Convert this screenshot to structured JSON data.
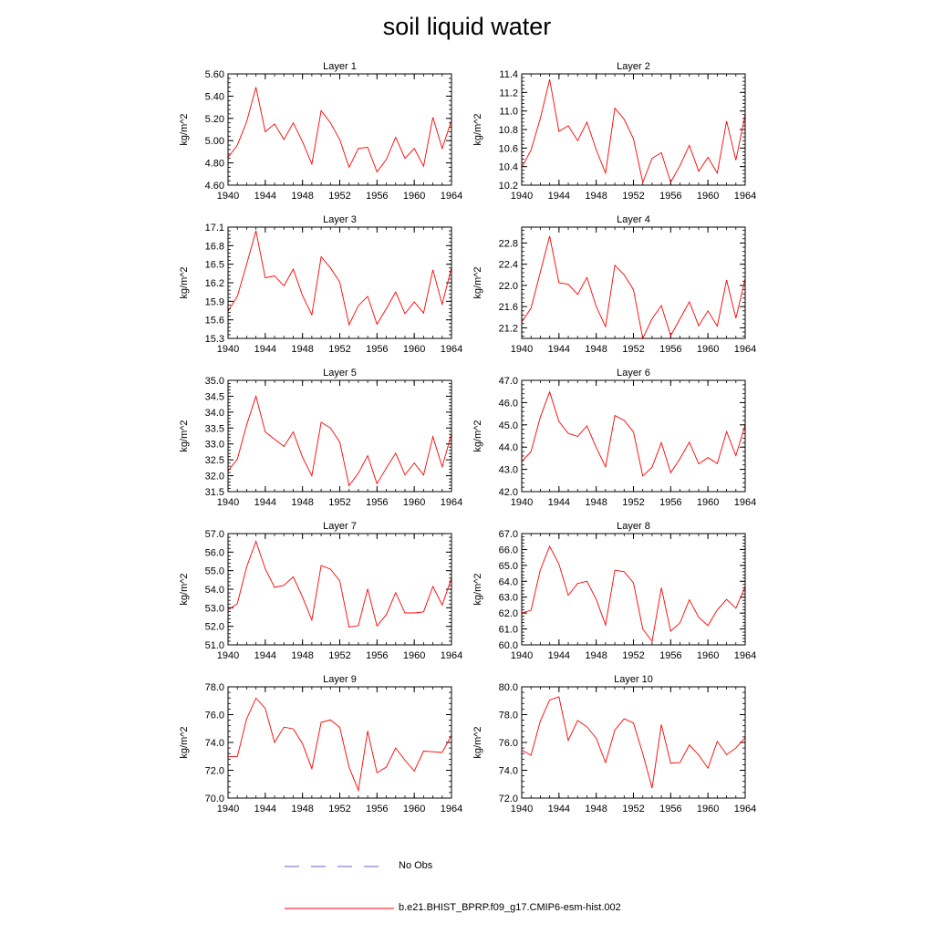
{
  "page_title": "soil liquid water",
  "legend": {
    "obs_label": "No Obs",
    "obs_color": "#6666cc",
    "model_label": "b.e21.BHIST_BPRP.f09_g17.CMIP6-esm-hist.002",
    "model_color": "#ff0000"
  },
  "chart_data": [
    {
      "type": "line",
      "title": "Layer 1",
      "ylabel": "kg/m^2",
      "xlim": [
        1940,
        1964
      ],
      "ylim": [
        4.6,
        5.6
      ],
      "x_ticks": [
        "1940",
        "1944",
        "1948",
        "1952",
        "1956",
        "1960",
        "1964"
      ],
      "y_ticks": [
        "4.60",
        "4.80",
        "5.00",
        "5.20",
        "5.40",
        "5.60"
      ],
      "series": [
        {
          "name": "b.e21.BHIST_BPRP.f09_g17.CMIP6-esm-hist.002",
          "color": "#ff0000",
          "x": [
            1940,
            1941,
            1942,
            1943,
            1944,
            1945,
            1946,
            1947,
            1948,
            1949,
            1950,
            1951,
            1952,
            1953,
            1954,
            1955,
            1956,
            1957,
            1958,
            1959,
            1960,
            1961,
            1962,
            1963,
            1964
          ],
          "y": [
            4.85,
            4.96,
            5.17,
            5.48,
            5.08,
            5.15,
            5.01,
            5.16,
            4.99,
            4.79,
            5.27,
            5.16,
            5.01,
            4.76,
            4.93,
            4.94,
            4.72,
            4.83,
            5.03,
            4.84,
            4.93,
            4.77,
            5.21,
            4.93,
            5.18
          ]
        }
      ]
    },
    {
      "type": "line",
      "title": "Layer 2",
      "ylabel": "kg/m^2",
      "xlim": [
        1940,
        1964
      ],
      "ylim": [
        10.2,
        11.4
      ],
      "x_ticks": [
        "1940",
        "1944",
        "1948",
        "1952",
        "1956",
        "1960",
        "1964"
      ],
      "y_ticks": [
        "10.2",
        "10.4",
        "10.6",
        "10.8",
        "11.0",
        "11.2",
        "11.4"
      ],
      "series": [
        {
          "name": "b.e21.BHIST_BPRP.f09_g17.CMIP6-esm-hist.002",
          "color": "#ff0000",
          "x": [
            1940,
            1941,
            1942,
            1943,
            1944,
            1945,
            1946,
            1947,
            1948,
            1949,
            1950,
            1951,
            1952,
            1953,
            1954,
            1955,
            1956,
            1957,
            1958,
            1959,
            1960,
            1961,
            1962,
            1963,
            1964
          ],
          "y": [
            10.39,
            10.58,
            10.92,
            11.34,
            10.78,
            10.84,
            10.68,
            10.88,
            10.58,
            10.33,
            11.03,
            10.91,
            10.7,
            10.23,
            10.49,
            10.55,
            10.23,
            10.41,
            10.63,
            10.35,
            10.5,
            10.33,
            10.89,
            10.47,
            10.96
          ]
        }
      ]
    },
    {
      "type": "line",
      "title": "Layer 3",
      "ylabel": "kg/m^2",
      "xlim": [
        1940,
        1964
      ],
      "ylim": [
        15.3,
        17.1
      ],
      "x_ticks": [
        "1940",
        "1944",
        "1948",
        "1952",
        "1956",
        "1960",
        "1964"
      ],
      "y_ticks": [
        "15.3",
        "15.6",
        "15.9",
        "16.2",
        "16.5",
        "16.8",
        "17.1"
      ],
      "series": [
        {
          "name": "b.e21.BHIST_BPRP.f09_g17.CMIP6-esm-hist.002",
          "color": "#ff0000",
          "x": [
            1940,
            1941,
            1942,
            1943,
            1944,
            1945,
            1946,
            1947,
            1948,
            1949,
            1950,
            1951,
            1952,
            1953,
            1954,
            1955,
            1956,
            1957,
            1958,
            1959,
            1960,
            1961,
            1962,
            1963,
            1964
          ],
          "y": [
            15.74,
            15.98,
            16.5,
            17.04,
            16.28,
            16.31,
            16.15,
            16.42,
            15.99,
            15.68,
            16.62,
            16.44,
            16.21,
            15.52,
            15.83,
            15.98,
            15.53,
            15.78,
            16.05,
            15.7,
            15.89,
            15.71,
            16.41,
            15.85,
            16.45
          ]
        }
      ]
    },
    {
      "type": "line",
      "title": "Layer 4",
      "ylabel": "kg/m^2",
      "xlim": [
        1940,
        1964
      ],
      "ylim": [
        21.0,
        23.1
      ],
      "x_ticks": [
        "1940",
        "1944",
        "1948",
        "1952",
        "1956",
        "1960",
        "1964"
      ],
      "y_ticks": [
        "21.2",
        "21.6",
        "22.0",
        "22.4",
        "22.8"
      ],
      "series": [
        {
          "name": "b.e21.BHIST_BPRP.f09_g17.CMIP6-esm-hist.002",
          "color": "#ff0000",
          "x": [
            1940,
            1941,
            1942,
            1943,
            1944,
            1945,
            1946,
            1947,
            1948,
            1949,
            1950,
            1951,
            1952,
            1953,
            1954,
            1955,
            1956,
            1957,
            1958,
            1959,
            1960,
            1961,
            1962,
            1963,
            1964
          ],
          "y": [
            21.31,
            21.57,
            22.25,
            22.93,
            22.05,
            22.02,
            21.83,
            22.15,
            21.6,
            21.22,
            22.38,
            22.2,
            21.92,
            21.0,
            21.37,
            21.62,
            21.05,
            21.37,
            21.69,
            21.24,
            21.52,
            21.23,
            22.1,
            21.38,
            22.13
          ]
        }
      ]
    },
    {
      "type": "line",
      "title": "Layer 5",
      "ylabel": "kg/m^2",
      "xlim": [
        1940,
        1964
      ],
      "ylim": [
        31.5,
        35.0
      ],
      "x_ticks": [
        "1940",
        "1944",
        "1948",
        "1952",
        "1956",
        "1960",
        "1964"
      ],
      "y_ticks": [
        "31.5",
        "32.0",
        "32.5",
        "33.0",
        "33.5",
        "34.0",
        "34.5",
        "35.0"
      ],
      "series": [
        {
          "name": "b.e21.BHIST_BPRP.f09_g17.CMIP6-esm-hist.002",
          "color": "#ff0000",
          "x": [
            1940,
            1941,
            1942,
            1943,
            1944,
            1945,
            1946,
            1947,
            1948,
            1949,
            1950,
            1951,
            1952,
            1953,
            1954,
            1955,
            1956,
            1957,
            1958,
            1959,
            1960,
            1961,
            1962,
            1963,
            1964
          ],
          "y": [
            32.15,
            32.52,
            33.6,
            34.5,
            33.38,
            33.15,
            32.92,
            33.38,
            32.58,
            32.0,
            33.68,
            33.5,
            33.06,
            31.69,
            32.08,
            32.63,
            31.75,
            32.24,
            32.71,
            32.03,
            32.4,
            32.02,
            33.23,
            32.28,
            33.32
          ]
        }
      ]
    },
    {
      "type": "line",
      "title": "Layer 6",
      "ylabel": "kg/m^2",
      "xlim": [
        1940,
        1964
      ],
      "ylim": [
        42.0,
        47.0
      ],
      "x_ticks": [
        "1940",
        "1944",
        "1948",
        "1952",
        "1956",
        "1960",
        "1964"
      ],
      "y_ticks": [
        "42.0",
        "43.0",
        "44.0",
        "45.0",
        "46.0",
        "47.0"
      ],
      "series": [
        {
          "name": "b.e21.BHIST_BPRP.f09_g17.CMIP6-esm-hist.002",
          "color": "#ff0000",
          "x": [
            1940,
            1941,
            1942,
            1943,
            1944,
            1945,
            1946,
            1947,
            1948,
            1949,
            1950,
            1951,
            1952,
            1953,
            1954,
            1955,
            1956,
            1957,
            1958,
            1959,
            1960,
            1961,
            1962,
            1963,
            1964
          ],
          "y": [
            43.35,
            43.8,
            45.35,
            46.48,
            45.15,
            44.62,
            44.48,
            44.95,
            43.98,
            43.12,
            45.42,
            45.2,
            44.68,
            42.7,
            43.1,
            44.2,
            42.85,
            43.48,
            44.22,
            43.25,
            43.53,
            43.26,
            44.7,
            43.62,
            45.0
          ]
        }
      ]
    },
    {
      "type": "line",
      "title": "Layer 7",
      "ylabel": "kg/m^2",
      "xlim": [
        1940,
        1964
      ],
      "ylim": [
        51.0,
        57.0
      ],
      "x_ticks": [
        "1940",
        "1944",
        "1948",
        "1952",
        "1956",
        "1960",
        "1964"
      ],
      "y_ticks": [
        "51.0",
        "52.0",
        "53.0",
        "54.0",
        "55.0",
        "56.0",
        "57.0"
      ],
      "series": [
        {
          "name": "b.e21.BHIST_BPRP.f09_g17.CMIP6-esm-hist.002",
          "color": "#ff0000",
          "x": [
            1940,
            1941,
            1942,
            1943,
            1944,
            1945,
            1946,
            1947,
            1948,
            1949,
            1950,
            1951,
            1952,
            1953,
            1954,
            1955,
            1956,
            1957,
            1958,
            1959,
            1960,
            1961,
            1962,
            1963,
            1964
          ],
          "y": [
            52.88,
            53.23,
            55.2,
            56.58,
            55.1,
            54.1,
            54.21,
            54.67,
            53.57,
            52.34,
            55.28,
            55.08,
            54.45,
            51.96,
            52.04,
            54.02,
            52.02,
            52.62,
            53.82,
            52.72,
            52.72,
            52.78,
            54.15,
            53.15,
            54.6
          ]
        }
      ]
    },
    {
      "type": "line",
      "title": "Layer 8",
      "ylabel": "kg/m^2",
      "xlim": [
        1940,
        1964
      ],
      "ylim": [
        60.0,
        67.0
      ],
      "x_ticks": [
        "1940",
        "1944",
        "1948",
        "1952",
        "1956",
        "1960",
        "1964"
      ],
      "y_ticks": [
        "60.0",
        "61.0",
        "62.0",
        "63.0",
        "64.0",
        "65.0",
        "66.0",
        "67.0"
      ],
      "series": [
        {
          "name": "b.e21.BHIST_BPRP.f09_g17.CMIP6-esm-hist.002",
          "color": "#ff0000",
          "x": [
            1940,
            1941,
            1942,
            1943,
            1944,
            1945,
            1946,
            1947,
            1948,
            1949,
            1950,
            1951,
            1952,
            1953,
            1954,
            1955,
            1956,
            1957,
            1958,
            1959,
            1960,
            1961,
            1962,
            1963,
            1964
          ],
          "y": [
            62.0,
            62.18,
            64.72,
            66.2,
            65.08,
            63.12,
            63.86,
            64.0,
            62.86,
            61.25,
            64.7,
            64.6,
            63.9,
            61.0,
            60.22,
            63.6,
            60.86,
            61.38,
            62.84,
            61.74,
            61.21,
            62.2,
            62.86,
            62.3,
            63.66
          ]
        }
      ]
    },
    {
      "type": "line",
      "title": "Layer 9",
      "ylabel": "kg/m^2",
      "xlim": [
        1940,
        1964
      ],
      "ylim": [
        70.0,
        78.0
      ],
      "x_ticks": [
        "1940",
        "1944",
        "1948",
        "1952",
        "1956",
        "1960",
        "1964"
      ],
      "y_ticks": [
        "70.0",
        "72.0",
        "74.0",
        "76.0",
        "78.0"
      ],
      "series": [
        {
          "name": "b.e21.BHIST_BPRP.f09_g17.CMIP6-esm-hist.002",
          "color": "#ff0000",
          "x": [
            1940,
            1941,
            1942,
            1943,
            1944,
            1945,
            1946,
            1947,
            1948,
            1949,
            1950,
            1951,
            1952,
            1953,
            1954,
            1955,
            1956,
            1957,
            1958,
            1959,
            1960,
            1961,
            1962,
            1963,
            1964
          ],
          "y": [
            72.98,
            72.98,
            75.7,
            77.18,
            76.45,
            74.0,
            75.1,
            74.98,
            73.9,
            72.12,
            75.45,
            75.62,
            75.08,
            72.22,
            70.55,
            74.82,
            71.82,
            72.23,
            73.6,
            72.72,
            71.95,
            73.38,
            73.33,
            73.28,
            74.52
          ]
        }
      ]
    },
    {
      "type": "line",
      "title": "Layer 10",
      "ylabel": "kg/m^2",
      "xlim": [
        1940,
        1964
      ],
      "ylim": [
        72.0,
        80.0
      ],
      "x_ticks": [
        "1940",
        "1944",
        "1948",
        "1952",
        "1956",
        "1960",
        "1964"
      ],
      "y_ticks": [
        "72.0",
        "74.0",
        "76.0",
        "78.0",
        "80.0"
      ],
      "series": [
        {
          "name": "b.e21.BHIST_BPRP.f09_g17.CMIP6-esm-hist.002",
          "color": "#ff0000",
          "x": [
            1940,
            1941,
            1942,
            1943,
            1944,
            1945,
            1946,
            1947,
            1948,
            1949,
            1950,
            1951,
            1952,
            1953,
            1954,
            1955,
            1956,
            1957,
            1958,
            1959,
            1960,
            1961,
            1962,
            1963,
            1964
          ],
          "y": [
            75.45,
            75.08,
            77.55,
            79.05,
            79.28,
            76.15,
            77.58,
            77.12,
            76.3,
            74.55,
            76.9,
            77.7,
            77.4,
            75.2,
            72.72,
            77.28,
            74.52,
            74.55,
            75.82,
            75.1,
            74.15,
            76.08,
            75.12,
            75.6,
            76.35
          ]
        }
      ]
    }
  ]
}
